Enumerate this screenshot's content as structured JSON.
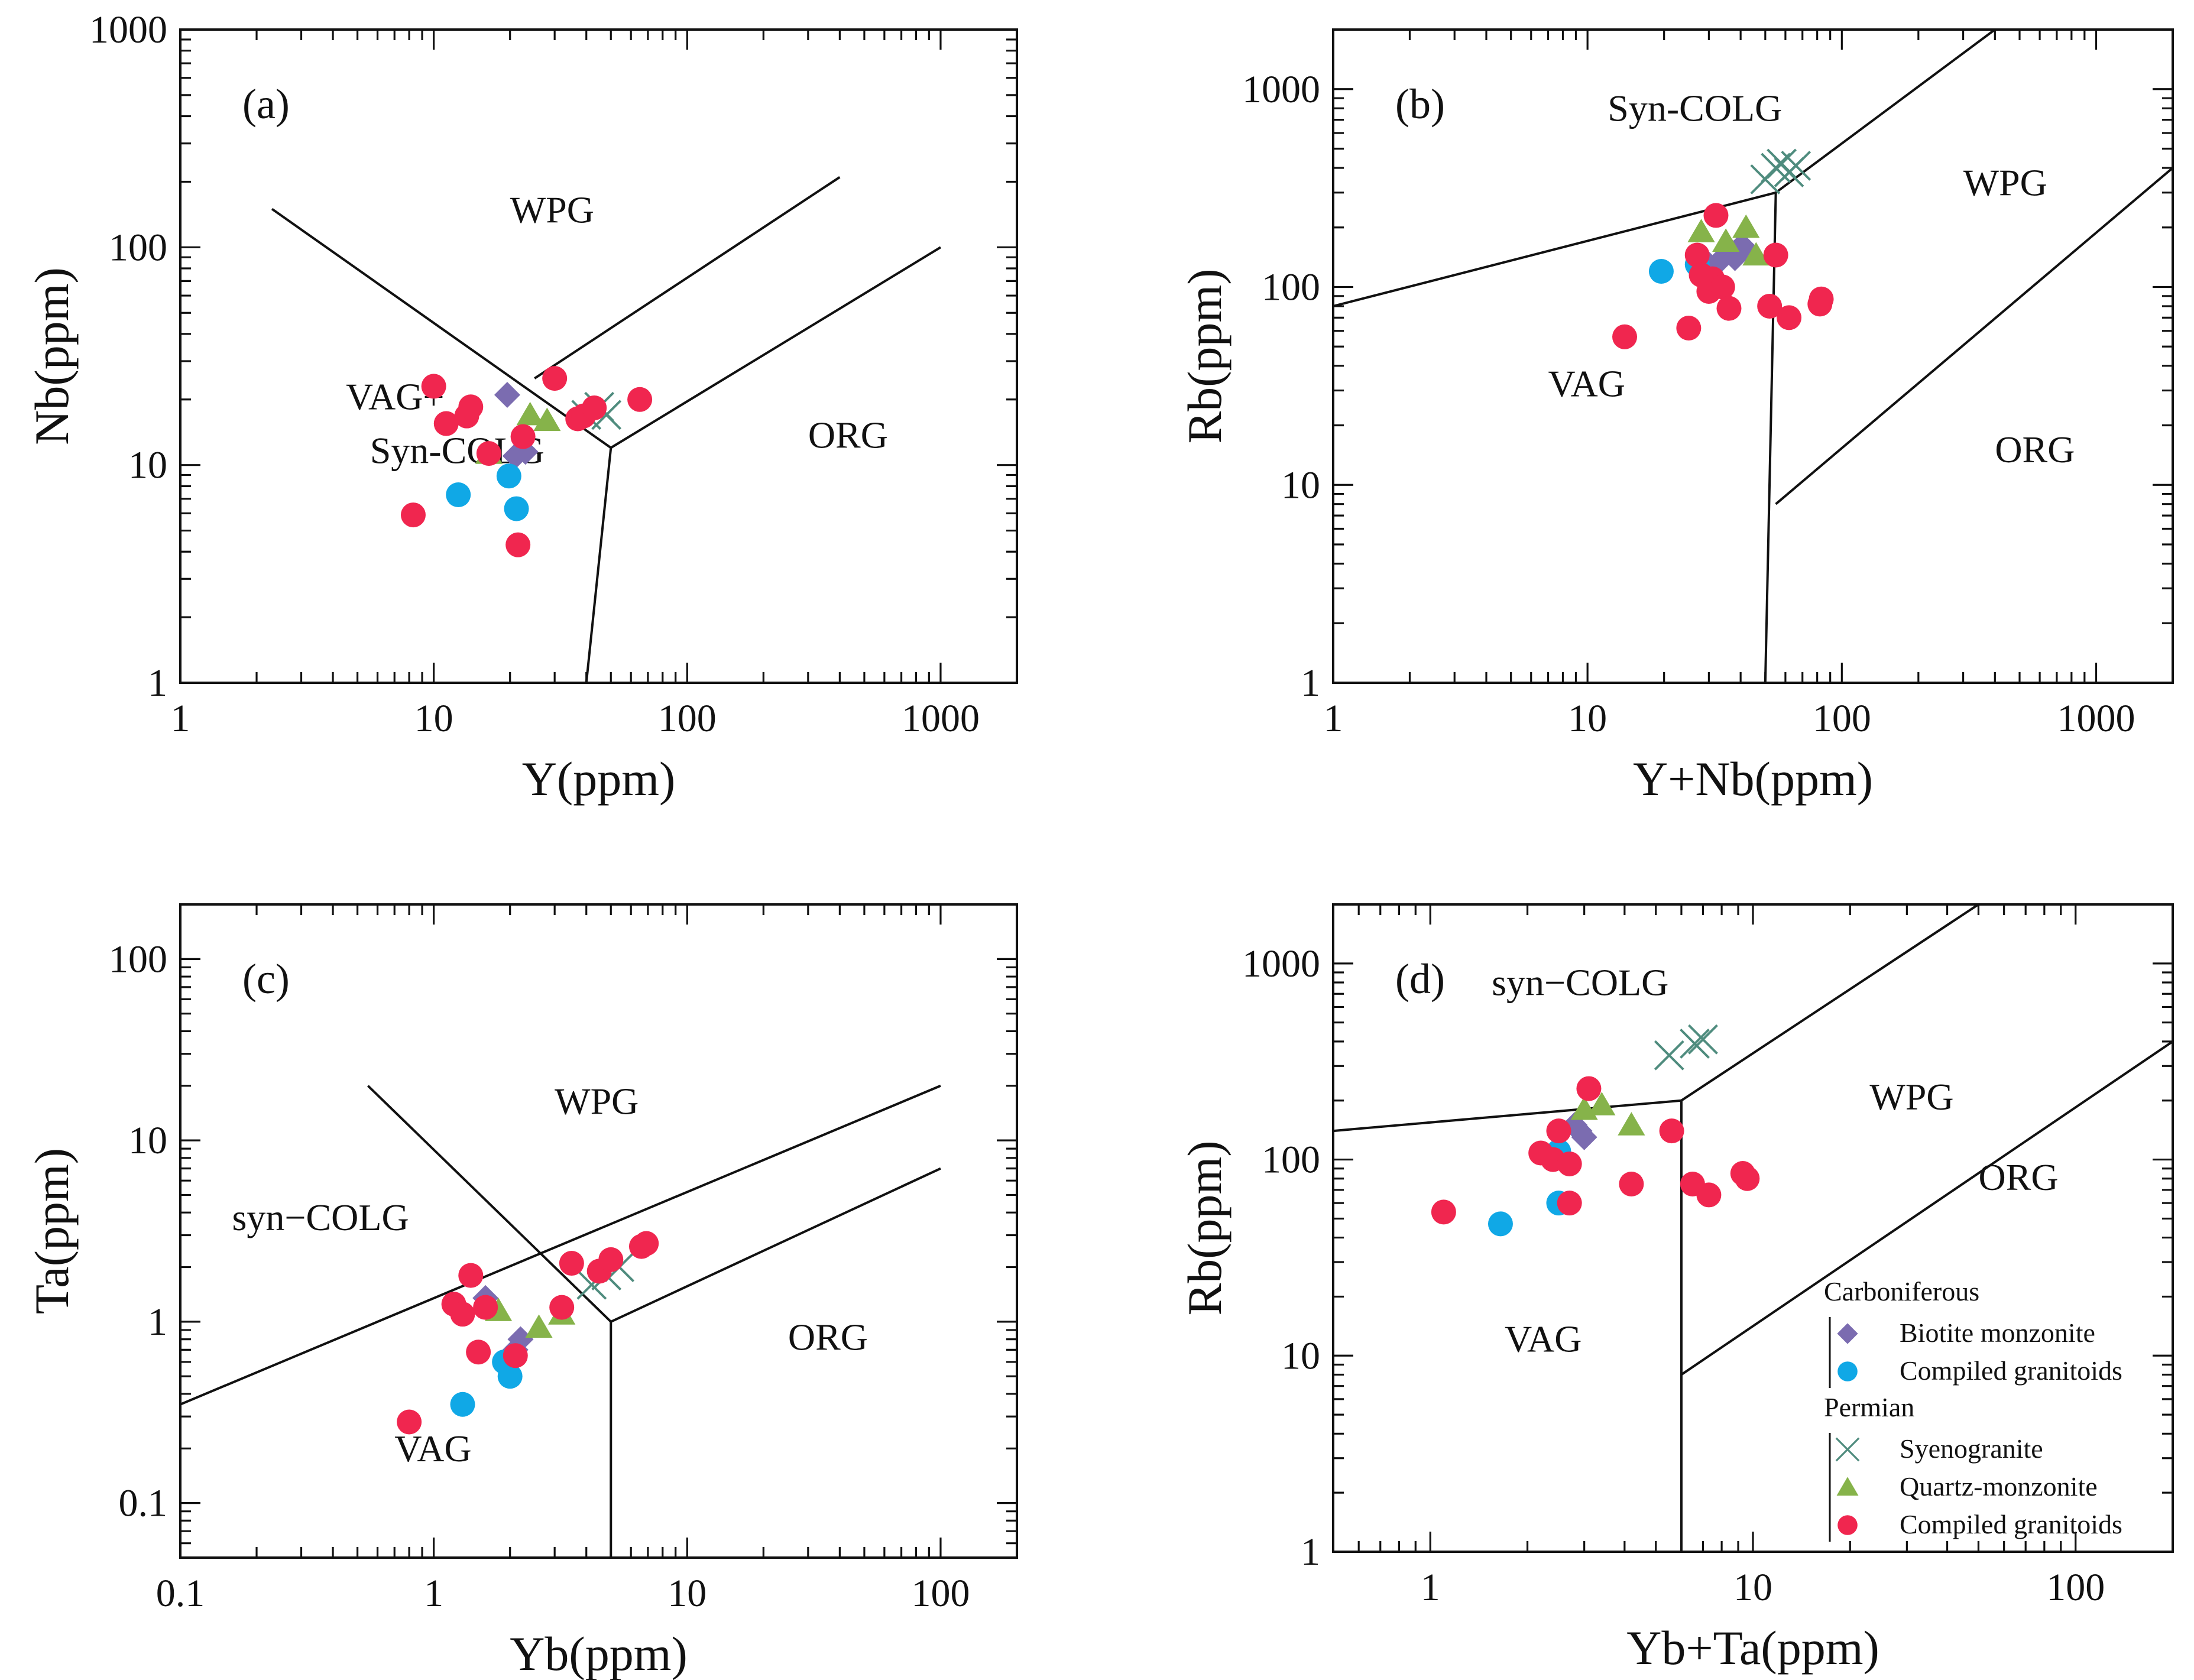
{
  "colors": {
    "biotite_monzonite": "#7b6cb0",
    "compiled_granitoids_carb": "#10a8e6",
    "syenogranite": "#4f8c7e",
    "quartz_monzonite": "#86b34a",
    "compiled_granitoids_perm": "#f0264f"
  },
  "legend": {
    "groups": [
      {
        "title": "Carboniferous",
        "items": [
          {
            "label": "Biotite monzonite",
            "marker": "diamond",
            "color_key": "biotite_monzonite"
          },
          {
            "label": "Compiled granitoids",
            "marker": "circle",
            "color_key": "compiled_granitoids_carb"
          }
        ]
      },
      {
        "title": "Permian",
        "items": [
          {
            "label": "Syenogranite",
            "marker": "cross",
            "color_key": "syenogranite"
          },
          {
            "label": "Quartz-monzonite",
            "marker": "triangle",
            "color_key": "quartz_monzonite"
          },
          {
            "label": "Compiled granitoids",
            "marker": "circle",
            "color_key": "compiled_granitoids_perm"
          }
        ]
      }
    ]
  },
  "chart_data": [
    {
      "type": "scatter",
      "panel": "(a)",
      "xlabel": "Y(ppm)",
      "ylabel": "Nb(ppm)",
      "xscale": "log",
      "yscale": "log",
      "xlim": [
        1,
        2000
      ],
      "ylim": [
        1,
        1000
      ],
      "x_ticks": [
        {
          "v": 1,
          "label": "1"
        },
        {
          "v": 10,
          "label": "10"
        },
        {
          "v": 100,
          "label": "100"
        },
        {
          "v": 1000,
          "label": "1000"
        }
      ],
      "y_ticks": [
        {
          "v": 1,
          "label": "1"
        },
        {
          "v": 10,
          "label": "10"
        },
        {
          "v": 100,
          "label": "100"
        },
        {
          "v": 1000,
          "label": "1000"
        }
      ],
      "fields": [
        {
          "label": "WPG",
          "x": 20,
          "y": 130
        },
        {
          "label": "VAG+",
          "x": 4.5,
          "y": 18
        },
        {
          "label": "Syn-COLG",
          "x": 5.6,
          "y": 10.2
        },
        {
          "label": "ORG",
          "x": 300,
          "y": 12
        }
      ],
      "boundaries": [
        [
          [
            2.3,
            150
          ],
          [
            50,
            12
          ]
        ],
        [
          [
            25,
            25
          ],
          [
            400,
            210
          ]
        ],
        [
          [
            50,
            12
          ],
          [
            1000,
            100
          ]
        ],
        [
          [
            50,
            12
          ],
          [
            40,
            1
          ]
        ]
      ],
      "series": [
        {
          "name": "Biotite monzonite",
          "marker": "diamond",
          "color_key": "biotite_monzonite",
          "points": [
            [
              19.5,
              21
            ],
            [
              21,
              11
            ],
            [
              23,
              11.5
            ]
          ]
        },
        {
          "name": "Compiled granitoids",
          "marker": "circle",
          "color_key": "compiled_granitoids_carb",
          "points": [
            [
              12.5,
              7.3
            ],
            [
              19.8,
              8.9
            ],
            [
              21.2,
              6.3
            ]
          ]
        },
        {
          "name": "Syenogranite",
          "marker": "cross",
          "color_key": "syenogranite",
          "points": [
            [
              40,
              17
            ],
            [
              45,
              18.5
            ],
            [
              48,
              17
            ]
          ]
        },
        {
          "name": "Quartz-monzonite",
          "marker": "triangle",
          "color_key": "quartz_monzonite",
          "points": [
            [
              16.5,
              11.3
            ],
            [
              24,
              17
            ],
            [
              28,
              16
            ]
          ]
        },
        {
          "name": "Compiled granitoids",
          "marker": "circle",
          "color_key": "compiled_granitoids_perm",
          "points": [
            [
              8.3,
              5.9
            ],
            [
              10,
              23
            ],
            [
              11.2,
              15.5
            ],
            [
              13.5,
              16.8
            ],
            [
              14,
              18.5
            ],
            [
              16.5,
              11.3
            ],
            [
              21.5,
              4.3
            ],
            [
              22.5,
              13.5
            ],
            [
              30,
              25
            ],
            [
              37,
              16.3
            ],
            [
              39,
              16.8
            ],
            [
              43,
              18.3
            ],
            [
              65,
              20
            ]
          ]
        }
      ]
    },
    {
      "type": "scatter",
      "panel": "(b)",
      "xlabel": "Y+Nb(ppm)",
      "ylabel": "Rb(ppm)",
      "xscale": "log",
      "yscale": "log",
      "xlim": [
        1,
        2000
      ],
      "ylim": [
        1,
        2000
      ],
      "x_ticks": [
        {
          "v": 1,
          "label": "1"
        },
        {
          "v": 10,
          "label": "10"
        },
        {
          "v": 100,
          "label": "100"
        },
        {
          "v": 1000,
          "label": "1000"
        }
      ],
      "y_ticks": [
        {
          "v": 1,
          "label": "1"
        },
        {
          "v": 10,
          "label": "10"
        },
        {
          "v": 100,
          "label": "100"
        },
        {
          "v": 1000,
          "label": "1000"
        }
      ],
      "fields": [
        {
          "label": "Syn-COLG",
          "x": 12,
          "y": 690
        },
        {
          "label": "WPG",
          "x": 300,
          "y": 290
        },
        {
          "label": "VAG",
          "x": 7,
          "y": 28
        },
        {
          "label": "ORG",
          "x": 400,
          "y": 13
        }
      ],
      "boundaries": [
        [
          [
            1,
            80
          ],
          [
            55,
            300
          ]
        ],
        [
          [
            55,
            300
          ],
          [
            400,
            2000
          ]
        ],
        [
          [
            55,
            300
          ],
          [
            50,
            1
          ]
        ],
        [
          [
            55,
            8
          ],
          [
            2000,
            400
          ]
        ]
      ],
      "series": [
        {
          "name": "Biotite monzonite",
          "marker": "diamond",
          "color_key": "biotite_monzonite",
          "points": [
            [
              30,
              130
            ],
            [
              33,
              135
            ],
            [
              37,
              150
            ],
            [
              40,
              160
            ],
            [
              42,
              155
            ],
            [
              38,
              140
            ]
          ]
        },
        {
          "name": "Compiled granitoids",
          "marker": "circle",
          "color_key": "compiled_granitoids_carb",
          "points": [
            [
              19.5,
              120
            ],
            [
              27,
              130
            ]
          ]
        },
        {
          "name": "Syenogranite",
          "marker": "cross",
          "color_key": "syenogranite",
          "points": [
            [
              50,
              350
            ],
            [
              55,
              400
            ],
            [
              58,
              420
            ],
            [
              62,
              380
            ],
            [
              66,
              410
            ]
          ]
        },
        {
          "name": "Quartz-monzonite",
          "marker": "triangle",
          "color_key": "quartz_monzonite",
          "points": [
            [
              28,
              190
            ],
            [
              35,
              170
            ],
            [
              42,
              200
            ],
            [
              46,
              145
            ]
          ]
        },
        {
          "name": "Compiled granitoids",
          "marker": "circle",
          "color_key": "compiled_granitoids_perm",
          "points": [
            [
              14,
              56
            ],
            [
              25,
              62
            ],
            [
              27,
              145
            ],
            [
              28,
              115
            ],
            [
              30,
              95
            ],
            [
              31,
              110
            ],
            [
              32,
              230
            ],
            [
              34,
              100
            ],
            [
              36,
              78
            ],
            [
              52,
              80
            ],
            [
              55,
              145
            ],
            [
              62,
              70
            ],
            [
              82,
              82
            ],
            [
              83,
              87
            ]
          ]
        }
      ]
    },
    {
      "type": "scatter",
      "panel": "(c)",
      "xlabel": "Yb(ppm)",
      "ylabel": "Ta(ppm)",
      "xscale": "log",
      "yscale": "log",
      "xlim": [
        0.1,
        200
      ],
      "ylim": [
        0.05,
        200
      ],
      "x_ticks": [
        {
          "v": 0.1,
          "label": "0.1"
        },
        {
          "v": 1,
          "label": "1"
        },
        {
          "v": 10,
          "label": "10"
        },
        {
          "v": 100,
          "label": "100"
        }
      ],
      "y_ticks": [
        {
          "v": 0.1,
          "label": "0.1"
        },
        {
          "v": 1,
          "label": "1"
        },
        {
          "v": 10,
          "label": "10"
        },
        {
          "v": 100,
          "label": "100"
        }
      ],
      "fields": [
        {
          "label": "WPG",
          "x": 3,
          "y": 14
        },
        {
          "label": "syn−COLG",
          "x": 0.16,
          "y": 3.2
        },
        {
          "label": "VAG",
          "x": 0.7,
          "y": 0.17
        },
        {
          "label": "ORG",
          "x": 25,
          "y": 0.7
        }
      ],
      "boundaries": [
        [
          [
            0.1,
            0.35
          ],
          [
            100,
            20
          ]
        ],
        [
          [
            0.55,
            20
          ],
          [
            5,
            1
          ]
        ],
        [
          [
            5,
            1
          ],
          [
            100,
            7
          ]
        ],
        [
          [
            5,
            1
          ],
          [
            5,
            0.05
          ]
        ]
      ],
      "series": [
        {
          "name": "Biotite monzonite",
          "marker": "diamond",
          "color_key": "biotite_monzonite",
          "points": [
            [
              1.6,
              1.35
            ],
            [
              2.1,
              0.7
            ],
            [
              2.2,
              0.8
            ]
          ]
        },
        {
          "name": "Compiled granitoids",
          "marker": "circle",
          "color_key": "compiled_granitoids_carb",
          "points": [
            [
              1.3,
              0.35
            ],
            [
              1.9,
              0.6
            ],
            [
              2.0,
              0.5
            ]
          ]
        },
        {
          "name": "Syenogranite",
          "marker": "cross",
          "color_key": "syenogranite",
          "points": [
            [
              4.2,
              1.6
            ],
            [
              4.8,
              1.8
            ],
            [
              5.4,
              2.0
            ]
          ]
        },
        {
          "name": "Quartz-monzonite",
          "marker": "triangle",
          "color_key": "quartz_monzonite",
          "points": [
            [
              1.8,
              1.15
            ],
            [
              2.6,
              0.93
            ],
            [
              3.2,
              1.1
            ]
          ]
        },
        {
          "name": "Compiled granitoids",
          "marker": "circle",
          "color_key": "compiled_granitoids_perm",
          "points": [
            [
              0.8,
              0.28
            ],
            [
              1.2,
              1.25
            ],
            [
              1.3,
              1.1
            ],
            [
              1.4,
              1.8
            ],
            [
              1.5,
              0.68
            ],
            [
              1.6,
              1.2
            ],
            [
              2.1,
              0.65
            ],
            [
              3.2,
              1.2
            ],
            [
              3.5,
              2.1
            ],
            [
              4.5,
              1.9
            ],
            [
              5.0,
              2.2
            ],
            [
              6.6,
              2.6
            ],
            [
              6.9,
              2.7
            ]
          ]
        }
      ]
    },
    {
      "type": "scatter",
      "panel": "(d)",
      "xlabel": "Yb+Ta(ppm)",
      "ylabel": "Rb(ppm)",
      "xscale": "log",
      "yscale": "log",
      "xlim": [
        0.5,
        200
      ],
      "ylim": [
        1,
        2000
      ],
      "x_ticks": [
        {
          "v": 1,
          "label": "1"
        },
        {
          "v": 10,
          "label": "10"
        },
        {
          "v": 100,
          "label": "100"
        }
      ],
      "y_ticks": [
        {
          "v": 1,
          "label": "1"
        },
        {
          "v": 10,
          "label": "10"
        },
        {
          "v": 100,
          "label": "100"
        },
        {
          "v": 1000,
          "label": "1000"
        }
      ],
      "fields": [
        {
          "label": "syn−COLG",
          "x": 1.55,
          "y": 690
        },
        {
          "label": "WPG",
          "x": 23,
          "y": 180
        },
        {
          "label": "ORG",
          "x": 50,
          "y": 70
        },
        {
          "label": "VAG",
          "x": 1.7,
          "y": 10.5
        }
      ],
      "boundaries": [
        [
          [
            0.5,
            140
          ],
          [
            6,
            200
          ]
        ],
        [
          [
            6,
            200
          ],
          [
            50,
            2000
          ]
        ],
        [
          [
            6,
            200
          ],
          [
            6,
            1
          ]
        ],
        [
          [
            6,
            8
          ],
          [
            200,
            400
          ]
        ]
      ],
      "series": [
        {
          "name": "Biotite monzonite",
          "marker": "diamond",
          "color_key": "biotite_monzonite",
          "points": [
            [
              2.8,
              150
            ],
            [
              2.9,
              140
            ],
            [
              3.0,
              130
            ]
          ]
        },
        {
          "name": "Compiled granitoids",
          "marker": "circle",
          "color_key": "compiled_granitoids_carb",
          "points": [
            [
              1.65,
              47
            ],
            [
              2.5,
              110
            ],
            [
              2.5,
              60
            ]
          ]
        },
        {
          "name": "Syenogranite",
          "marker": "cross",
          "color_key": "syenogranite",
          "points": [
            [
              5.5,
              340
            ],
            [
              6.6,
              390
            ],
            [
              7.0,
              410
            ]
          ]
        },
        {
          "name": "Quartz-monzonite",
          "marker": "triangle",
          "color_key": "quartz_monzonite",
          "points": [
            [
              3.0,
              180
            ],
            [
              3.4,
              190
            ],
            [
              4.2,
              150
            ]
          ]
        },
        {
          "name": "Compiled granitoids",
          "marker": "circle",
          "color_key": "compiled_granitoids_perm",
          "points": [
            [
              1.1,
              54
            ],
            [
              2.2,
              108
            ],
            [
              2.4,
              100
            ],
            [
              2.5,
              140
            ],
            [
              2.7,
              95
            ],
            [
              2.7,
              60
            ],
            [
              3.1,
              230
            ],
            [
              4.2,
              75
            ],
            [
              5.6,
              140
            ],
            [
              6.5,
              75
            ],
            [
              7.3,
              66
            ],
            [
              9.3,
              85
            ],
            [
              9.6,
              80
            ]
          ]
        }
      ]
    }
  ]
}
